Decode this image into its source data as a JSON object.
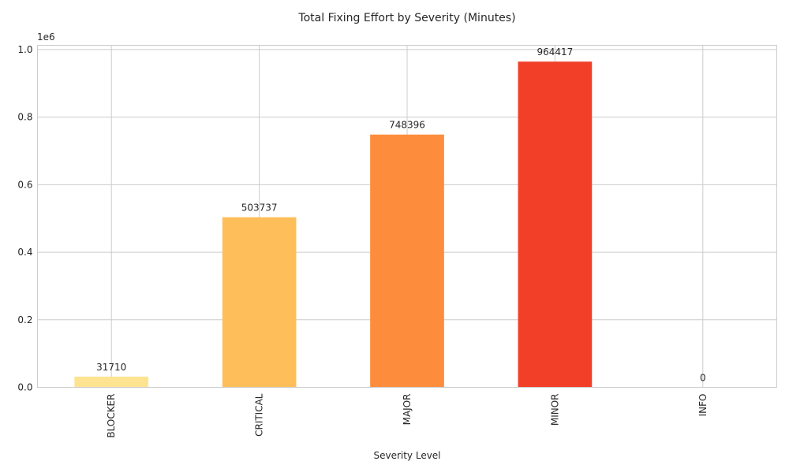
{
  "chart_data": {
    "type": "bar",
    "title": "Total Fixing Effort by Severity (Minutes)",
    "xlabel": "Severity Level",
    "ylabel": "",
    "offset_label": "1e6",
    "categories": [
      "BLOCKER",
      "CRITICAL",
      "MAJOR",
      "MINOR",
      "INFO"
    ],
    "values": [
      31710,
      503737,
      748396,
      964417,
      0
    ],
    "data_labels": [
      "31710",
      "503737",
      "748396",
      "964417",
      "0"
    ],
    "colors": [
      "#fee491",
      "#febf5a",
      "#fd8d3c",
      "#f23f28",
      "#bd0026"
    ],
    "ylim": [
      0,
      1012637.85
    ],
    "yticks": [
      0,
      200000,
      400000,
      600000,
      800000,
      1000000
    ],
    "ytick_labels": [
      "0.0",
      "0.2",
      "0.4",
      "0.6",
      "0.8",
      "1.0"
    ],
    "grid": true,
    "legend": "none"
  }
}
